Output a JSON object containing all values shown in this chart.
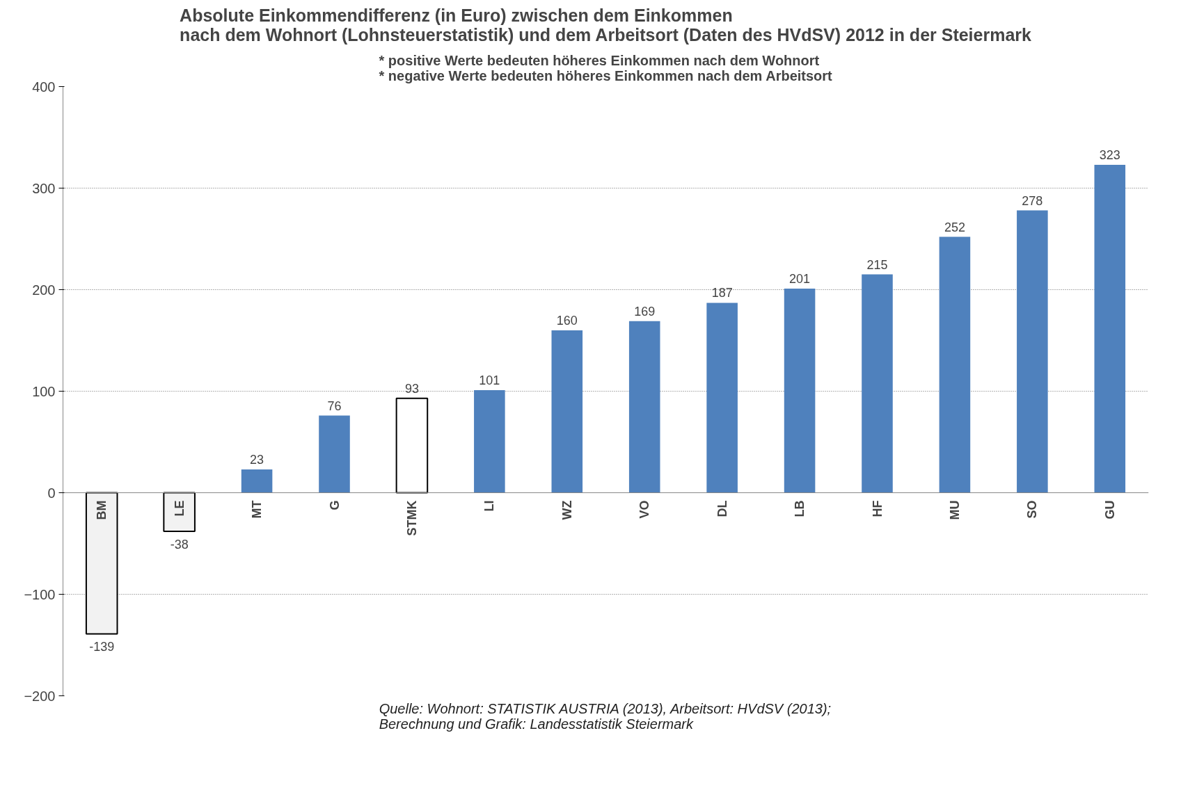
{
  "chart_data": {
    "type": "bar",
    "title": "Absolute Einkommendifferenz (in Euro) zwischen dem Einkommen\nnach dem Wohnort (Lohnsteuerstatistik) und dem Arbeitsort (Daten des HVdSV) 2012 in der Steiermark",
    "subtitle": "* positive Werte bedeuten höheres Einkommen nach dem Wohnort\n* negative Werte bedeuten höheres Einkommen nach dem Arbeitsort",
    "categories": [
      "BM",
      "LE",
      "MT",
      "G",
      "STMK",
      "LI",
      "WZ",
      "VO",
      "DL",
      "LB",
      "HF",
      "MU",
      "SO",
      "GU"
    ],
    "values": [
      -139,
      -38,
      23,
      76,
      93,
      101,
      160,
      169,
      187,
      201,
      215,
      252,
      278,
      323
    ],
    "colors": [
      "#f2f2f2",
      "#f2f2f2",
      "#4f81bd",
      "#4f81bd",
      "#ffffff",
      "#4f81bd",
      "#4f81bd",
      "#4f81bd",
      "#4f81bd",
      "#4f81bd",
      "#4f81bd",
      "#4f81bd",
      "#4f81bd",
      "#4f81bd"
    ],
    "ylim": [
      -200,
      400
    ],
    "yticks": [
      -200,
      -100,
      0,
      100,
      200,
      300,
      400
    ],
    "grid": "y",
    "data_labels": true,
    "annotations": [
      "Quelle: Wohnort: STATISTIK AUSTRIA (2013), Arbeitsort: HVdSV (2013);\nBerechnung und Grafik: Landesstatistik Steiermark"
    ]
  }
}
